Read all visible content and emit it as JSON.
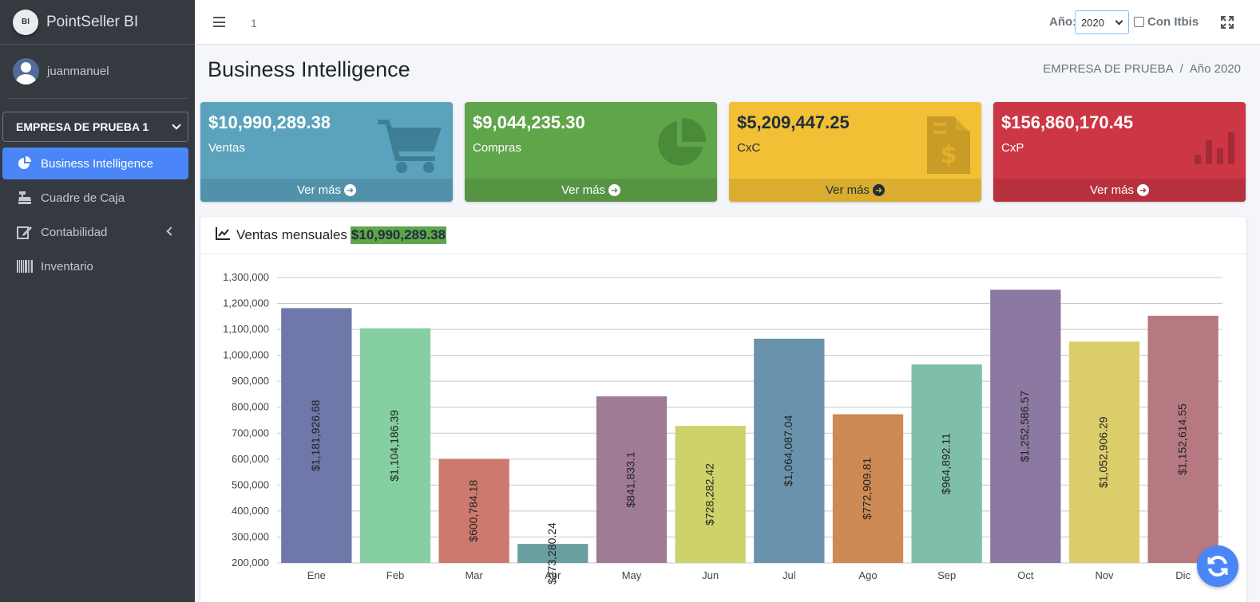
{
  "brand": {
    "logo_text": "BI",
    "name": "PointSeller BI"
  },
  "user": {
    "name": "juanmanuel"
  },
  "sidebar": {
    "company": "EMPRESA DE PRUEBA 1",
    "items": [
      {
        "label": "Business Intelligence",
        "icon": "chart-pie-icon",
        "active": true
      },
      {
        "label": "Cuadre de Caja",
        "icon": "cash-register-icon"
      },
      {
        "label": "Contabilidad",
        "icon": "edit-icon"
      },
      {
        "label": "Inventario",
        "icon": "barcode-icon"
      }
    ]
  },
  "navbar": {
    "number": "1",
    "year_label": "Año:",
    "year_value": "2020",
    "itbis_label": "Con Itbis"
  },
  "header": {
    "title": "Business Intelligence",
    "breadcrumb": [
      "EMPRESA DE PRUEBA",
      "Año 2020"
    ]
  },
  "boxes": [
    {
      "value": "$10,990,289.38",
      "label": "Ventas",
      "footer": "Ver más",
      "color": "#5ba3bd",
      "icon": "shopping-cart-icon"
    },
    {
      "value": "$9,044,235.30",
      "label": "Compras",
      "footer": "Ver más",
      "color": "#5fa54a",
      "icon": "chart-pie-icon"
    },
    {
      "value": "$5,209,447.25",
      "label": "CxC",
      "footer": "Ver más",
      "color": "#f1c034",
      "icon": "invoice-dollar-icon"
    },
    {
      "value": "$156,860,170.45",
      "label": "CxP",
      "footer": "Ver más",
      "color": "#cc3645",
      "icon": "bar-chart-icon"
    }
  ],
  "card": {
    "title": "Ventas mensuales",
    "total": "$10,990,289.38"
  },
  "chart_data": {
    "type": "bar",
    "categories": [
      "Ene",
      "Feb",
      "Mar",
      "Abr",
      "May",
      "Jun",
      "Jul",
      "Ago",
      "Sep",
      "Oct",
      "Nov",
      "Dic"
    ],
    "values": [
      1181926.68,
      1104186.39,
      600784.18,
      273280.24,
      841833.1,
      728282.42,
      1064087.04,
      772909.81,
      964892.11,
      1252586.57,
      1052906.29,
      1152614.55
    ],
    "data_labels": [
      "$1,181,926.68",
      "$1,104,186.39",
      "$600,784.18",
      "$273,280.24",
      "$841,833.1",
      "$728,282.42",
      "$1,064,087.04",
      "$772,909.81",
      "$964,892.11",
      "$1,252,586.57",
      "$1,052,906.29",
      "$1,152,614.55"
    ],
    "colors": [
      "#6f78a8",
      "#85cfa0",
      "#cd7a6e",
      "#6a9fa0",
      "#a07b96",
      "#cdd36a",
      "#6993ac",
      "#cd8a55",
      "#7fbfa7",
      "#8b79a1",
      "#dccd6b",
      "#b67982"
    ],
    "y_ticks": [
      "200,000",
      "300,000",
      "400,000",
      "500,000",
      "600,000",
      "700,000",
      "800,000",
      "900,000",
      "1,000,000",
      "1,100,000",
      "1,200,000",
      "1,300,000"
    ],
    "ylim": [
      200000,
      1300000
    ],
    "grid": true,
    "legend": "none"
  }
}
